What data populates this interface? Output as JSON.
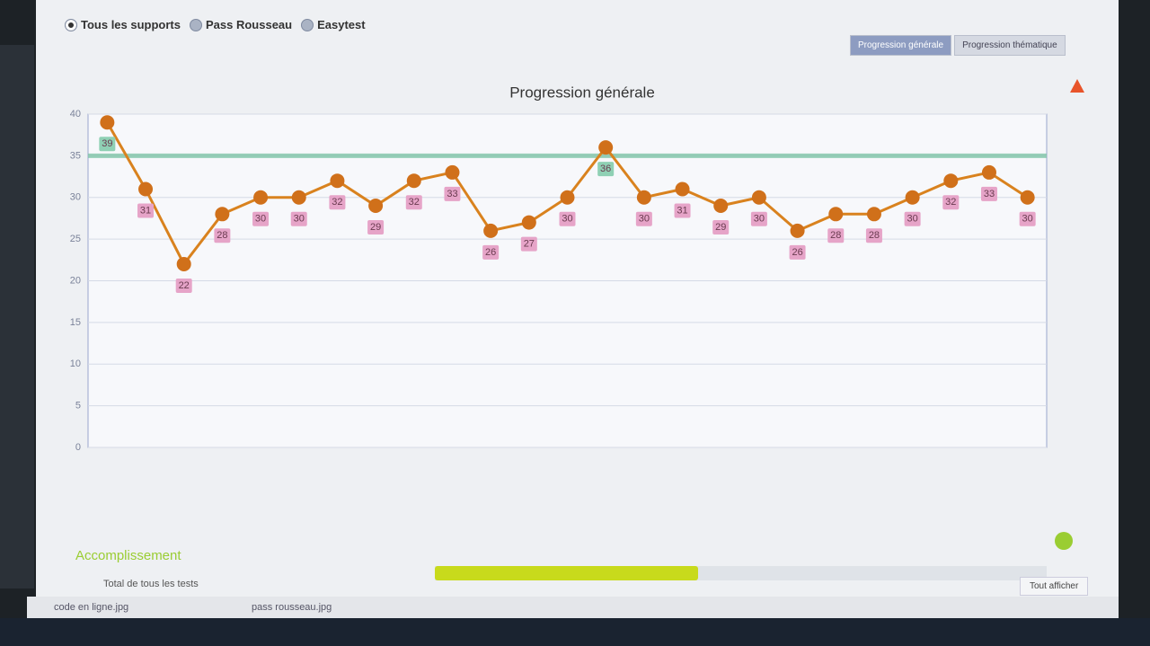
{
  "controls": {
    "radios": [
      "Tous les supports",
      "Pass Rousseau",
      "Easytest"
    ],
    "tabs": [
      "Progression générale",
      "Progression thématique"
    ]
  },
  "chart_data": {
    "type": "line",
    "title": "Progression générale",
    "categories": [
      null,
      null,
      null,
      null,
      null,
      null,
      null,
      null,
      null,
      null,
      null,
      null,
      null,
      null,
      null,
      null,
      null,
      null,
      null,
      null,
      null,
      null,
      null,
      null,
      null
    ],
    "values": [
      39,
      31,
      22,
      28,
      30,
      30,
      32,
      29,
      32,
      33,
      26,
      27,
      30,
      36,
      30,
      31,
      29,
      30,
      26,
      28,
      28,
      30,
      32,
      33,
      30
    ],
    "color": "#d9821e",
    "ylim": [
      0,
      40
    ],
    "yticks": [
      0,
      5,
      10,
      15,
      20,
      25,
      30,
      35,
      40
    ],
    "grid": true,
    "reference_line": {
      "value": 35,
      "color": "#7fc4a8"
    }
  },
  "accomplishment": {
    "title": "Accomplissement",
    "row_label": "Total de tous les tests",
    "progress": 43
  },
  "buttons": {
    "show_all": "Tout afficher"
  },
  "downloads": [
    "code en ligne.jpg",
    "pass rousseau.jpg"
  ]
}
